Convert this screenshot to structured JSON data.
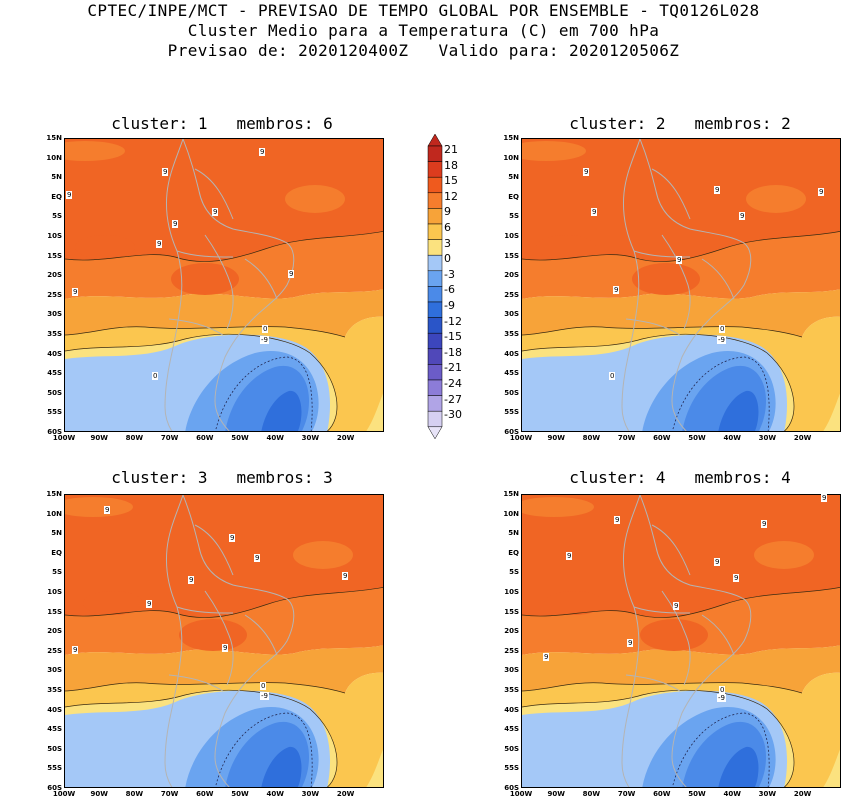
{
  "header": {
    "line1": "CPTEC/INPE/MCT - PREVISAO DE TEMPO GLOBAL POR ENSEMBLE - TQ0126L028",
    "line2": "Cluster Medio para a Temperatura (C) em 700 hPa",
    "line3": "Previsao de: 2020120400Z   Valido para: 2020120506Z"
  },
  "panels": [
    {
      "title": "cluster: 1   membros: 6"
    },
    {
      "title": "cluster: 2   membros: 2"
    },
    {
      "title": "cluster: 3   membros: 3"
    },
    {
      "title": "cluster: 4   membros: 4"
    }
  ],
  "axes": {
    "lat_labels": [
      "15N",
      "10N",
      "5N",
      "EQ",
      "5S",
      "10S",
      "15S",
      "20S",
      "25S",
      "30S",
      "35S",
      "40S",
      "45S",
      "50S",
      "55S",
      "60S"
    ],
    "lon_labels": [
      "100W",
      "90W",
      "80W",
      "70W",
      "60W",
      "50W",
      "40W",
      "30W",
      "20W"
    ]
  },
  "contour_labels": {
    "warm": "9",
    "zero": "0",
    "cold": "-9"
  },
  "colorbar": {
    "levels": [
      "21",
      "18",
      "15",
      "12",
      "9",
      "6",
      "3",
      "0",
      "-3",
      "-6",
      "-9",
      "-12",
      "-15",
      "-18",
      "-21",
      "-24",
      "-27",
      "-30"
    ],
    "colors": [
      "#c0281e",
      "#dc3c1e",
      "#ef5a1e",
      "#f57d2d",
      "#f7a339",
      "#fbc64f",
      "#fbe27f",
      "#a4c8f7",
      "#6aa4f0",
      "#4b8ae8",
      "#2f6fdc",
      "#2a55c8",
      "#3c46bd",
      "#5048b9",
      "#6b5cc8",
      "#8c7cd8",
      "#b0a4e6",
      "#d6d0f2"
    ]
  },
  "map_colors": {
    "c12": "#f06524",
    "c9": "#f57d2d",
    "c6": "#f7a339",
    "c3": "#fbc64f",
    "c0": "#fbe27f",
    "cm3": "#a4c8f7",
    "cm6": "#6aa4f0",
    "cm9": "#4b8ae8",
    "cm12": "#2f6fdc",
    "land_line": "#b4b4b4"
  }
}
